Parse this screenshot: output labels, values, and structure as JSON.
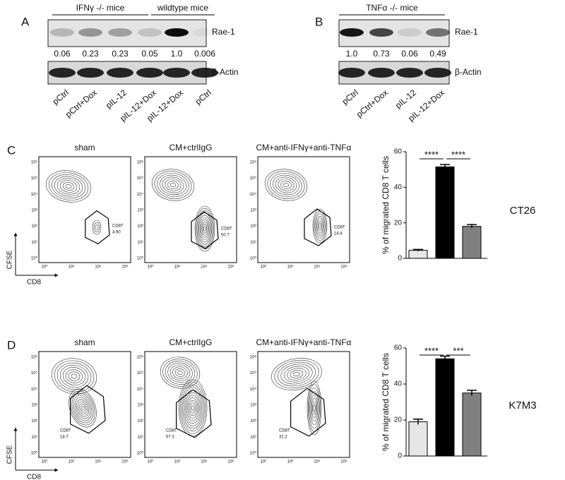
{
  "panel_a": {
    "letter": "A",
    "groups": [
      "IFNγ -/- mice",
      "wildtype mice"
    ],
    "target": "Rae-1",
    "quantities": [
      "0.06",
      "0.23",
      "0.23",
      "0.05",
      "1.0",
      "0.006"
    ],
    "loading": "β-Actin",
    "lanes": [
      "pCtrl",
      "pCtrl+Dox",
      "pIL-12",
      "pIL-12+Dox",
      "pIL-12+Dox",
      "pCtrl"
    ]
  },
  "panel_b": {
    "letter": "B",
    "groups": [
      "TNFα -/- mice"
    ],
    "target": "Rae-1",
    "quantities": [
      "1.0",
      "0.73",
      "0.06",
      "0.49"
    ],
    "loading": "β-Actin",
    "lanes": [
      "pCtrl",
      "pCtrl+Dox",
      "pIL-12",
      "pIL-12+Dox"
    ]
  },
  "flow_axes": {
    "y_label": "CFSE",
    "x_label": "CD8",
    "ticks": [
      "10⁰",
      "10¹",
      "10²",
      "10³",
      "10⁴",
      "10⁵",
      "10⁶"
    ]
  },
  "panel_c": {
    "letter": "C",
    "cell_line": "CT26",
    "plots": [
      {
        "title": "sham",
        "gate": "CD8T",
        "percent": "4.90"
      },
      {
        "title": "CM+ctrlIgG",
        "gate": "CD8T",
        "percent": "50.7"
      },
      {
        "title": "CM+anti-IFNγ+anti-TNFα",
        "gate": "CD8T",
        "percent": "18.4"
      }
    ],
    "chart": {
      "type": "bar",
      "y_label": "% of migrated CD8 T cells",
      "ylim": [
        0,
        60
      ],
      "yticks": [
        0,
        20,
        40,
        60
      ],
      "values": [
        4.5,
        51.5,
        18
      ],
      "errors": [
        0.5,
        1.3,
        1
      ],
      "colors": [
        "#e6e6e6",
        "#000000",
        "#808080"
      ],
      "significance": [
        "****",
        "****"
      ]
    }
  },
  "panel_d": {
    "letter": "D",
    "cell_line": "K7M3",
    "plots": [
      {
        "title": "sham",
        "gate": "CD8T",
        "percent": "18.7"
      },
      {
        "title": "CM+ctrlIgG",
        "gate": "CD8T",
        "percent": "57.3"
      },
      {
        "title": "CM+anti-IFNγ+anti-TNFα",
        "gate": "CD8T",
        "percent": "32.2"
      }
    ],
    "chart": {
      "type": "bar",
      "y_label": "% of migrated CD8 T cells",
      "ylim": [
        0,
        60
      ],
      "yticks": [
        0,
        20,
        40,
        60
      ],
      "values": [
        19,
        54,
        35
      ],
      "errors": [
        1.5,
        1.5,
        1.5
      ],
      "colors": [
        "#e6e6e6",
        "#000000",
        "#808080"
      ],
      "significance": [
        "****",
        "***"
      ]
    }
  }
}
